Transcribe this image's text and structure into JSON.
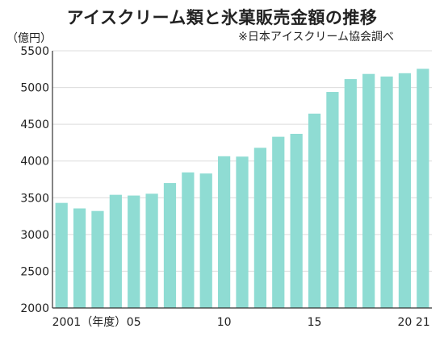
{
  "chart_data": {
    "type": "bar",
    "title": "アイスクリーム類と氷菓販売金額の推移",
    "source": "※日本アイスクリーム協会調べ",
    "ylabel": "（億円）",
    "ylim": [
      2000,
      5500
    ],
    "yticks": [
      2000,
      2500,
      3000,
      3500,
      4000,
      4500,
      5000,
      5500
    ],
    "grid": true,
    "color": "#8fdcd3",
    "categories": [
      "2001",
      "2002",
      "2003",
      "2004",
      "2005",
      "2006",
      "2007",
      "2008",
      "2009",
      "2010",
      "2011",
      "2012",
      "2013",
      "2014",
      "2015",
      "2016",
      "2017",
      "2018",
      "2019",
      "2020",
      "2021"
    ],
    "x_tick_labels": [
      {
        "index": 0,
        "text": "2001（年度）"
      },
      {
        "index": 4,
        "text": "05"
      },
      {
        "index": 9,
        "text": "10"
      },
      {
        "index": 14,
        "text": "15"
      },
      {
        "index": 19,
        "text": "20"
      },
      {
        "index": 20,
        "text": "21"
      }
    ],
    "values": [
      3430,
      3355,
      3320,
      3540,
      3530,
      3555,
      3700,
      3845,
      3830,
      4065,
      4060,
      4180,
      4330,
      4370,
      4645,
      4940,
      5115,
      5185,
      5150,
      5195,
      5255
    ]
  }
}
